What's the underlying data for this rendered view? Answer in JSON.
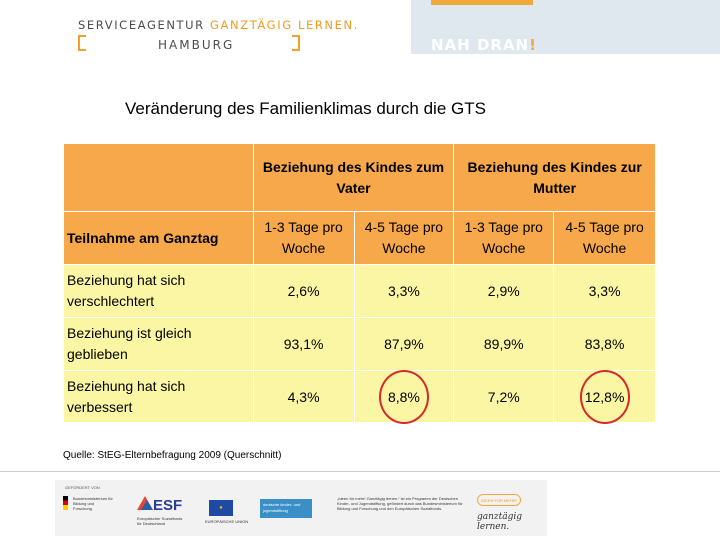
{
  "header": {
    "agentur_prefix": "SERVICEAGENTUR",
    "agentur_accent": "GANZTÄGIG LERNEN.",
    "city": "HAMBURG",
    "slogan": "NAH DRAN",
    "slogan_mark": "!"
  },
  "title": "Veränderung des Familienklimas durch die GTS",
  "table": {
    "group_headers": [
      "Beziehung des Kindes zum Vater",
      "Beziehung des Kindes zur Mutter"
    ],
    "row_header_label": "Teilnahme am Ganztag",
    "sub_headers": [
      "1-3 Tage pro Woche",
      "4-5 Tage pro Woche",
      "1-3 Tage pro Woche",
      "4-5 Tage pro Woche"
    ],
    "rows": [
      {
        "label": "Beziehung hat sich verschlechtert",
        "values": [
          "2,6%",
          "3,3%",
          "2,9%",
          "3,3%"
        ]
      },
      {
        "label": "Beziehung ist gleich geblieben",
        "values": [
          "93,1%",
          "87,9%",
          "89,9%",
          "83,8%"
        ]
      },
      {
        "label": "Beziehung hat sich verbessert",
        "values": [
          "4,3%",
          "8,8%",
          "7,2%",
          "12,8%"
        ]
      }
    ],
    "highlighted": [
      {
        "row": 2,
        "col": 1
      },
      {
        "row": 2,
        "col": 3
      }
    ],
    "colors": {
      "header": "#f7a84a",
      "body": "#fbf6a4",
      "highlight_ring": "#d62b2b"
    }
  },
  "source": "Quelle: StEG-Elternbefragung 2009 (Querschnitt)",
  "footer": {
    "caption": "GEFÖRDERT VON",
    "bmbf": "Bundesministerium für Bildung und Forschung",
    "esf": "ESF",
    "esf_sub": "Europäischer Sozialfonds für Deutschland",
    "eu_flag": "★",
    "eu_caption": "EUROPÄISCHE UNION",
    "djs": "deutsche kinder- und jugendstiftung",
    "about": "„Ideen für mehr! Ganztägig lernen.“ ist ein Programm der Deutschen Kinder- und Jugendstiftung, gefördert durch das Bundesministerium für Bildung und Forschung und den Europäischen Sozialfonds.",
    "badge": "IDEEN FÜR MEHR!",
    "script": "ganztägig lernen."
  }
}
